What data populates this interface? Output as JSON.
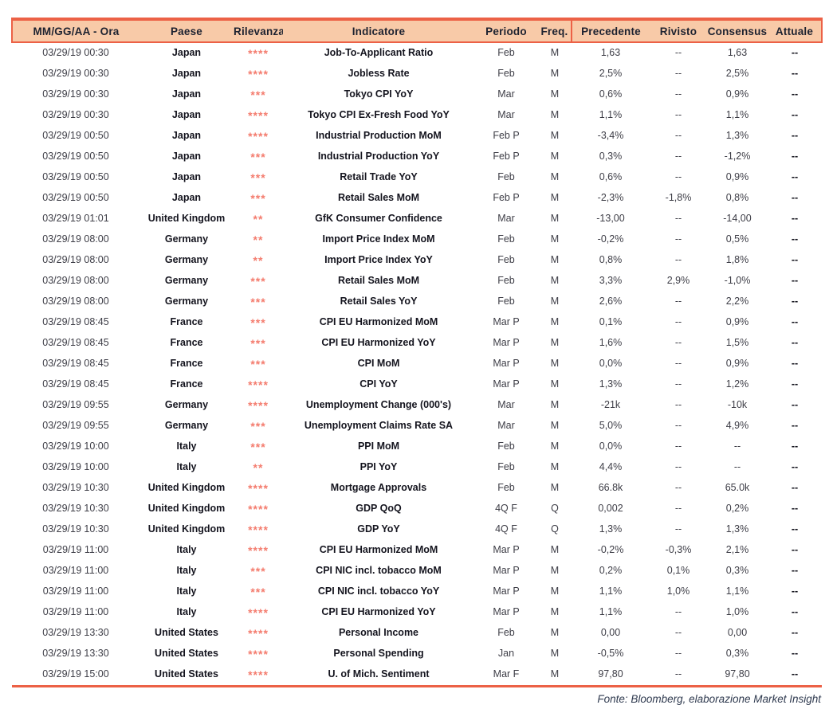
{
  "colors": {
    "header_bg": "#f8caa8",
    "rule_red": "#ec6146",
    "stars": "#f47c6e",
    "body_text": "#3d3d46",
    "strong_text": "#14141e",
    "footer_text": "#2f3a4f"
  },
  "table": {
    "columns": [
      {
        "key": "datetime",
        "label": "MM/GG/AA - Ora"
      },
      {
        "key": "country",
        "label": "Paese"
      },
      {
        "key": "relevance",
        "label": "Rilevanza"
      },
      {
        "key": "indicator",
        "label": "Indicatore"
      },
      {
        "key": "period",
        "label": "Periodo"
      },
      {
        "key": "freq",
        "label": "Freq."
      },
      {
        "key": "previous",
        "label": "Precedente"
      },
      {
        "key": "revised",
        "label": "Rivisto"
      },
      {
        "key": "consensus",
        "label": "Consensus"
      },
      {
        "key": "actual",
        "label": "Attuale"
      }
    ],
    "rows": [
      {
        "datetime": "03/29/19 00:30",
        "country": "Japan",
        "relevance": "****",
        "indicator": "Job-To-Applicant Ratio",
        "period": "Feb",
        "freq": "M",
        "previous": "1,63",
        "revised": "--",
        "consensus": "1,63",
        "actual": "--"
      },
      {
        "datetime": "03/29/19 00:30",
        "country": "Japan",
        "relevance": "****",
        "indicator": "Jobless Rate",
        "period": "Feb",
        "freq": "M",
        "previous": "2,5%",
        "revised": "--",
        "consensus": "2,5%",
        "actual": "--"
      },
      {
        "datetime": "03/29/19 00:30",
        "country": "Japan",
        "relevance": "***",
        "indicator": "Tokyo CPI YoY",
        "period": "Mar",
        "freq": "M",
        "previous": "0,6%",
        "revised": "--",
        "consensus": "0,9%",
        "actual": "--"
      },
      {
        "datetime": "03/29/19 00:30",
        "country": "Japan",
        "relevance": "****",
        "indicator": "Tokyo CPI Ex-Fresh Food YoY",
        "period": "Mar",
        "freq": "M",
        "previous": "1,1%",
        "revised": "--",
        "consensus": "1,1%",
        "actual": "--"
      },
      {
        "datetime": "03/29/19 00:50",
        "country": "Japan",
        "relevance": "****",
        "indicator": "Industrial Production MoM",
        "period": "Feb P",
        "freq": "M",
        "previous": "-3,4%",
        "revised": "--",
        "consensus": "1,3%",
        "actual": "--"
      },
      {
        "datetime": "03/29/19 00:50",
        "country": "Japan",
        "relevance": "***",
        "indicator": "Industrial Production YoY",
        "period": "Feb P",
        "freq": "M",
        "previous": "0,3%",
        "revised": "--",
        "consensus": "-1,2%",
        "actual": "--"
      },
      {
        "datetime": "03/29/19 00:50",
        "country": "Japan",
        "relevance": "***",
        "indicator": "Retail Trade YoY",
        "period": "Feb",
        "freq": "M",
        "previous": "0,6%",
        "revised": "--",
        "consensus": "0,9%",
        "actual": "--"
      },
      {
        "datetime": "03/29/19 00:50",
        "country": "Japan",
        "relevance": "***",
        "indicator": "Retail Sales MoM",
        "period": "Feb P",
        "freq": "M",
        "previous": "-2,3%",
        "revised": "-1,8%",
        "consensus": "0,8%",
        "actual": "--"
      },
      {
        "datetime": "03/29/19 01:01",
        "country": "United Kingdom",
        "relevance": "**",
        "indicator": "GfK Consumer Confidence",
        "period": "Mar",
        "freq": "M",
        "previous": "-13,00",
        "revised": "--",
        "consensus": "-14,00",
        "actual": "--"
      },
      {
        "datetime": "03/29/19 08:00",
        "country": "Germany",
        "relevance": "**",
        "indicator": "Import Price Index MoM",
        "period": "Feb",
        "freq": "M",
        "previous": "-0,2%",
        "revised": "--",
        "consensus": "0,5%",
        "actual": "--"
      },
      {
        "datetime": "03/29/19 08:00",
        "country": "Germany",
        "relevance": "**",
        "indicator": "Import Price Index YoY",
        "period": "Feb",
        "freq": "M",
        "previous": "0,8%",
        "revised": "--",
        "consensus": "1,8%",
        "actual": "--"
      },
      {
        "datetime": "03/29/19 08:00",
        "country": "Germany",
        "relevance": "***",
        "indicator": "Retail Sales MoM",
        "period": "Feb",
        "freq": "M",
        "previous": "3,3%",
        "revised": "2,9%",
        "consensus": "-1,0%",
        "actual": "--"
      },
      {
        "datetime": "03/29/19 08:00",
        "country": "Germany",
        "relevance": "***",
        "indicator": "Retail Sales YoY",
        "period": "Feb",
        "freq": "M",
        "previous": "2,6%",
        "revised": "--",
        "consensus": "2,2%",
        "actual": "--"
      },
      {
        "datetime": "03/29/19 08:45",
        "country": "France",
        "relevance": "***",
        "indicator": "CPI EU Harmonized MoM",
        "period": "Mar P",
        "freq": "M",
        "previous": "0,1%",
        "revised": "--",
        "consensus": "0,9%",
        "actual": "--"
      },
      {
        "datetime": "03/29/19 08:45",
        "country": "France",
        "relevance": "***",
        "indicator": "CPI EU Harmonized YoY",
        "period": "Mar P",
        "freq": "M",
        "previous": "1,6%",
        "revised": "--",
        "consensus": "1,5%",
        "actual": "--"
      },
      {
        "datetime": "03/29/19 08:45",
        "country": "France",
        "relevance": "***",
        "indicator": "CPI MoM",
        "period": "Mar P",
        "freq": "M",
        "previous": "0,0%",
        "revised": "--",
        "consensus": "0,9%",
        "actual": "--"
      },
      {
        "datetime": "03/29/19 08:45",
        "country": "France",
        "relevance": "****",
        "indicator": "CPI YoY",
        "period": "Mar P",
        "freq": "M",
        "previous": "1,3%",
        "revised": "--",
        "consensus": "1,2%",
        "actual": "--"
      },
      {
        "datetime": "03/29/19 09:55",
        "country": "Germany",
        "relevance": "****",
        "indicator": "Unemployment Change (000's)",
        "period": "Mar",
        "freq": "M",
        "previous": "-21k",
        "revised": "--",
        "consensus": "-10k",
        "actual": "--"
      },
      {
        "datetime": "03/29/19 09:55",
        "country": "Germany",
        "relevance": "***",
        "indicator": "Unemployment Claims Rate SA",
        "period": "Mar",
        "freq": "M",
        "previous": "5,0%",
        "revised": "--",
        "consensus": "4,9%",
        "actual": "--"
      },
      {
        "datetime": "03/29/19 10:00",
        "country": "Italy",
        "relevance": "***",
        "indicator": "PPI MoM",
        "period": "Feb",
        "freq": "M",
        "previous": "0,0%",
        "revised": "--",
        "consensus": "--",
        "actual": "--"
      },
      {
        "datetime": "03/29/19 10:00",
        "country": "Italy",
        "relevance": "**",
        "indicator": "PPI YoY",
        "period": "Feb",
        "freq": "M",
        "previous": "4,4%",
        "revised": "--",
        "consensus": "--",
        "actual": "--"
      },
      {
        "datetime": "03/29/19 10:30",
        "country": "United Kingdom",
        "relevance": "****",
        "indicator": "Mortgage Approvals",
        "period": "Feb",
        "freq": "M",
        "previous": "66.8k",
        "revised": "--",
        "consensus": "65.0k",
        "actual": "--"
      },
      {
        "datetime": "03/29/19 10:30",
        "country": "United Kingdom",
        "relevance": "****",
        "indicator": "GDP QoQ",
        "period": "4Q F",
        "freq": "Q",
        "previous": "0,002",
        "revised": "--",
        "consensus": "0,2%",
        "actual": "--"
      },
      {
        "datetime": "03/29/19 10:30",
        "country": "United Kingdom",
        "relevance": "****",
        "indicator": "GDP YoY",
        "period": "4Q F",
        "freq": "Q",
        "previous": "1,3%",
        "revised": "--",
        "consensus": "1,3%",
        "actual": "--"
      },
      {
        "datetime": "03/29/19 11:00",
        "country": "Italy",
        "relevance": "****",
        "indicator": "CPI EU Harmonized MoM",
        "period": "Mar P",
        "freq": "M",
        "previous": "-0,2%",
        "revised": "-0,3%",
        "consensus": "2,1%",
        "actual": "--"
      },
      {
        "datetime": "03/29/19 11:00",
        "country": "Italy",
        "relevance": "***",
        "indicator": "CPI NIC incl. tobacco MoM",
        "period": "Mar P",
        "freq": "M",
        "previous": "0,2%",
        "revised": "0,1%",
        "consensus": "0,3%",
        "actual": "--"
      },
      {
        "datetime": "03/29/19 11:00",
        "country": "Italy",
        "relevance": "***",
        "indicator": "CPI NIC incl. tobacco YoY",
        "period": "Mar P",
        "freq": "M",
        "previous": "1,1%",
        "revised": "1,0%",
        "consensus": "1,1%",
        "actual": "--"
      },
      {
        "datetime": "03/29/19 11:00",
        "country": "Italy",
        "relevance": "****",
        "indicator": "CPI EU Harmonized YoY",
        "period": "Mar P",
        "freq": "M",
        "previous": "1,1%",
        "revised": "--",
        "consensus": "1,0%",
        "actual": "--"
      },
      {
        "datetime": "03/29/19 13:30",
        "country": "United States",
        "relevance": "****",
        "indicator": "Personal Income",
        "period": "Feb",
        "freq": "M",
        "previous": "0,00",
        "revised": "--",
        "consensus": "0,00",
        "actual": "--"
      },
      {
        "datetime": "03/29/19 13:30",
        "country": "United States",
        "relevance": "****",
        "indicator": "Personal Spending",
        "period": "Jan",
        "freq": "M",
        "previous": "-0,5%",
        "revised": "--",
        "consensus": "0,3%",
        "actual": "--"
      },
      {
        "datetime": "03/29/19 15:00",
        "country": "United States",
        "relevance": "****",
        "indicator": "U. of Mich. Sentiment",
        "period": "Mar F",
        "freq": "M",
        "previous": "97,80",
        "revised": "--",
        "consensus": "97,80",
        "actual": "--"
      }
    ]
  },
  "footer": {
    "source": "Fonte: Bloomberg, elaborazione Market Insight"
  }
}
